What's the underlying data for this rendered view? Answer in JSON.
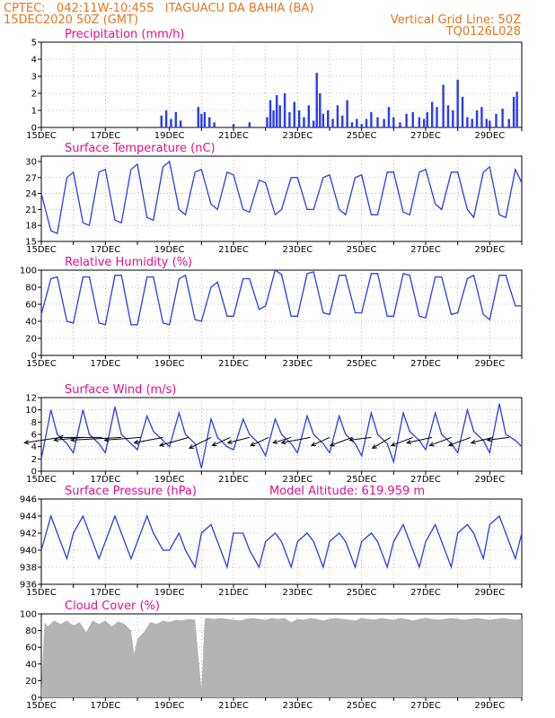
{
  "header": {
    "left_line1": "CPTEC:   042:11W-10:45S   ITAGUACU DA BAHIA (BA)",
    "left_line2": "15DEC2020 50Z (GMT)",
    "right_line1": "Vertical Grid Line: 50Z",
    "right_line2": "TQ0126L028"
  },
  "x_axis": {
    "tick_labels": [
      "15DEC",
      "17DEC",
      "19DEC",
      "21DEC",
      "23DEC",
      "25DEC",
      "27DEC",
      "29DEC"
    ],
    "start_day": 15,
    "end_day": 30
  },
  "colors": {
    "line": "#2a3cf0",
    "bar": "#2a3cf0",
    "cloud": "#b4b4b4",
    "header": "#e8741c",
    "title": "#e0108c"
  },
  "chart_data": [
    {
      "id": "precipitation",
      "type": "bar",
      "title": "Precipitation (mm/h)",
      "ylim": [
        0,
        5
      ],
      "yticks": [
        0,
        1,
        2,
        3,
        4,
        5
      ],
      "x": [
        18.75,
        18.9,
        19.05,
        19.2,
        19.35,
        19.9,
        20.0,
        20.1,
        20.25,
        20.4,
        21.0,
        21.5,
        22.05,
        22.15,
        22.25,
        22.35,
        22.45,
        22.6,
        22.75,
        22.9,
        23.05,
        23.2,
        23.35,
        23.5,
        23.6,
        23.7,
        23.8,
        23.95,
        24.1,
        24.25,
        24.4,
        24.55,
        24.7,
        24.85,
        25.0,
        25.15,
        25.3,
        25.5,
        25.7,
        25.85,
        26.0,
        26.2,
        26.4,
        26.6,
        26.8,
        26.95,
        27.05,
        27.2,
        27.35,
        27.55,
        27.7,
        27.85,
        28.0,
        28.15,
        28.3,
        28.45,
        28.6,
        28.75,
        28.9,
        29.0,
        29.2,
        29.4,
        29.6,
        29.75,
        29.85
      ],
      "values": [
        0.7,
        1.0,
        0.5,
        0.9,
        0.4,
        1.2,
        0.8,
        0.9,
        0.6,
        0.3,
        0.2,
        0.3,
        0.6,
        1.6,
        1.0,
        1.9,
        1.3,
        2.0,
        0.9,
        1.5,
        1.0,
        0.6,
        1.3,
        0.4,
        3.2,
        2.0,
        0.8,
        1.0,
        0.5,
        1.3,
        0.7,
        1.6,
        0.3,
        0.5,
        0.2,
        0.5,
        0.9,
        0.6,
        0.5,
        1.2,
        0.6,
        0.3,
        0.8,
        0.9,
        0.6,
        0.5,
        0.9,
        1.5,
        1.2,
        2.5,
        1.3,
        1.0,
        2.8,
        1.8,
        0.6,
        0.5,
        1.0,
        1.2,
        0.5,
        0.4,
        0.8,
        1.1,
        0.5,
        1.8,
        2.1
      ]
    },
    {
      "id": "surface-temperature",
      "type": "line",
      "title": "Surface Temperature (nC)",
      "ylim": [
        15,
        31
      ],
      "yticks": [
        15,
        18,
        21,
        24,
        27,
        30
      ],
      "x": [
        15.0,
        15.3,
        15.5,
        15.8,
        16.0,
        16.3,
        16.5,
        16.8,
        17.0,
        17.3,
        17.5,
        17.8,
        18.0,
        18.3,
        18.5,
        18.8,
        19.0,
        19.3,
        19.5,
        19.8,
        20.0,
        20.3,
        20.5,
        20.8,
        21.0,
        21.3,
        21.5,
        21.8,
        22.0,
        22.3,
        22.5,
        22.8,
        23.0,
        23.3,
        23.5,
        23.8,
        24.0,
        24.3,
        24.5,
        24.8,
        25.0,
        25.3,
        25.5,
        25.8,
        26.0,
        26.3,
        26.5,
        26.8,
        27.0,
        27.3,
        27.5,
        27.8,
        28.0,
        28.3,
        28.5,
        28.8,
        29.0,
        29.3,
        29.5,
        29.8,
        30.0
      ],
      "values": [
        24.0,
        17.0,
        16.5,
        27.0,
        28.0,
        18.5,
        18.0,
        28.0,
        28.5,
        19.0,
        18.5,
        28.5,
        29.5,
        19.5,
        19.0,
        29.0,
        30.0,
        21.0,
        20.0,
        28.0,
        28.5,
        22.0,
        21.0,
        28.0,
        27.5,
        21.0,
        20.5,
        26.5,
        26.0,
        20.0,
        21.0,
        27.0,
        27.0,
        21.0,
        21.0,
        27.0,
        27.5,
        21.0,
        20.0,
        27.0,
        27.5,
        20.0,
        20.0,
        28.0,
        28.0,
        20.5,
        20.0,
        28.0,
        28.5,
        22.0,
        21.0,
        28.0,
        28.0,
        21.0,
        19.5,
        28.0,
        29.0,
        20.0,
        19.5,
        28.5,
        26.0
      ]
    },
    {
      "id": "relative-humidity",
      "type": "line",
      "title": "Relative Humidity (%)",
      "ylim": [
        0,
        100
      ],
      "yticks": [
        0,
        20,
        40,
        60,
        80,
        100
      ],
      "x": [
        15.0,
        15.3,
        15.5,
        15.8,
        16.0,
        16.3,
        16.5,
        16.8,
        17.0,
        17.3,
        17.5,
        17.8,
        18.0,
        18.3,
        18.5,
        18.8,
        19.0,
        19.3,
        19.5,
        19.8,
        20.0,
        20.3,
        20.5,
        20.8,
        21.0,
        21.3,
        21.5,
        21.8,
        22.0,
        22.3,
        22.5,
        22.8,
        23.0,
        23.3,
        23.5,
        23.8,
        24.0,
        24.3,
        24.5,
        24.8,
        25.0,
        25.3,
        25.5,
        25.8,
        26.0,
        26.3,
        26.5,
        26.8,
        27.0,
        27.3,
        27.5,
        27.8,
        28.0,
        28.3,
        28.5,
        28.8,
        29.0,
        29.3,
        29.5,
        29.8,
        30.0
      ],
      "values": [
        48.0,
        90.0,
        92.0,
        40.0,
        38.0,
        92.0,
        92.0,
        38.0,
        36.0,
        94.0,
        94.0,
        36.0,
        36.0,
        92.0,
        92.0,
        38.0,
        36.0,
        90.0,
        94.0,
        42.0,
        40.0,
        80.0,
        86.0,
        46.0,
        46.0,
        90.0,
        90.0,
        54.0,
        58.0,
        100.0,
        95.0,
        46.0,
        46.0,
        96.0,
        98.0,
        50.0,
        48.0,
        94.0,
        94.0,
        50.0,
        50.0,
        96.0,
        96.0,
        46.0,
        46.0,
        96.0,
        94.0,
        46.0,
        44.0,
        92.0,
        92.0,
        48.0,
        50.0,
        90.0,
        94.0,
        48.0,
        42.0,
        94.0,
        94.0,
        58.0,
        58.0
      ]
    },
    {
      "id": "surface-wind",
      "type": "line",
      "title": "Surface Wind (m/s)",
      "ylim": [
        0,
        12
      ],
      "yticks": [
        0,
        2,
        4,
        6,
        8,
        10,
        12
      ],
      "x": [
        15.0,
        15.3,
        15.5,
        15.8,
        16.0,
        16.3,
        16.5,
        16.8,
        17.0,
        17.3,
        17.5,
        17.8,
        18.0,
        18.3,
        18.5,
        18.8,
        19.0,
        19.3,
        19.5,
        19.8,
        20.0,
        20.3,
        20.5,
        20.8,
        21.0,
        21.3,
        21.5,
        21.8,
        22.0,
        22.3,
        22.5,
        22.8,
        23.0,
        23.3,
        23.5,
        23.8,
        24.0,
        24.3,
        24.5,
        24.8,
        25.0,
        25.3,
        25.5,
        25.8,
        26.0,
        26.3,
        26.5,
        26.8,
        27.0,
        27.3,
        27.5,
        27.8,
        28.0,
        28.3,
        28.5,
        28.8,
        29.0,
        29.3,
        29.5,
        29.8,
        30.0
      ],
      "values": [
        2.0,
        10.0,
        6.0,
        4.5,
        3.0,
        10.0,
        6.0,
        4.5,
        3.0,
        10.5,
        6.0,
        4.5,
        3.5,
        9.0,
        6.5,
        5.0,
        4.0,
        9.5,
        6.0,
        4.5,
        0.5,
        8.5,
        5.5,
        4.0,
        3.5,
        8.5,
        6.0,
        4.5,
        2.5,
        8.5,
        6.0,
        4.5,
        3.0,
        9.0,
        6.0,
        4.5,
        3.0,
        9.0,
        6.0,
        4.5,
        2.5,
        9.5,
        6.0,
        4.5,
        1.5,
        9.5,
        6.5,
        5.0,
        3.5,
        9.5,
        6.0,
        4.5,
        3.0,
        10.0,
        6.5,
        5.0,
        3.0,
        11.0,
        6.0,
        5.0,
        4.0
      ],
      "vectors_x": [
        15.6,
        16.3,
        16.9,
        17.5,
        18.1,
        18.8,
        19.6,
        20.3,
        20.9,
        21.5,
        22.1,
        22.8,
        23.4,
        24.0,
        24.7,
        25.3,
        25.9,
        26.6,
        27.2,
        27.8,
        28.4,
        29.1,
        29.6
      ],
      "vectors_u": [
        -5.0,
        -4.0,
        -6.0,
        -7.0,
        -5.0,
        -4.0,
        -4.0,
        -3.0,
        -2.5,
        -3.0,
        -2.5,
        -2.5,
        -4.0,
        -2.5,
        -3.0,
        -3.0,
        -2.5,
        -3.0,
        -3.5,
        -3.0,
        -3.0,
        -3.0,
        -3.0
      ],
      "vectors_v": [
        1.0,
        0.5,
        0.0,
        0.5,
        0.5,
        1.0,
        1.5,
        2.0,
        1.5,
        1.0,
        1.5,
        1.0,
        1.0,
        1.5,
        1.5,
        0.5,
        2.0,
        1.5,
        1.0,
        1.5,
        1.5,
        1.0,
        0.5
      ]
    },
    {
      "id": "surface-pressure",
      "type": "line",
      "title": "Surface Pressure (hPa)",
      "annotation": "Model Altitude: 619.959  m",
      "ylim": [
        936,
        946
      ],
      "yticks": [
        936,
        938,
        940,
        942,
        944,
        946
      ],
      "x": [
        15.0,
        15.3,
        15.5,
        15.8,
        16.0,
        16.3,
        16.5,
        16.8,
        17.0,
        17.3,
        17.5,
        17.8,
        18.0,
        18.3,
        18.5,
        18.8,
        19.0,
        19.3,
        19.5,
        19.8,
        20.0,
        20.3,
        20.5,
        20.8,
        21.0,
        21.3,
        21.5,
        21.8,
        22.0,
        22.3,
        22.5,
        22.8,
        23.0,
        23.3,
        23.5,
        23.8,
        24.0,
        24.3,
        24.5,
        24.8,
        25.0,
        25.3,
        25.5,
        25.8,
        26.0,
        26.3,
        26.5,
        26.8,
        27.0,
        27.3,
        27.5,
        27.8,
        28.0,
        28.3,
        28.5,
        28.8,
        29.0,
        29.3,
        29.5,
        29.8,
        30.0
      ],
      "values": [
        940.0,
        944.0,
        942.0,
        939.0,
        942.0,
        944.0,
        942.0,
        939.0,
        941.0,
        944.0,
        942.0,
        939.0,
        941.0,
        944.0,
        942.0,
        940.0,
        940.0,
        942.0,
        940.0,
        938.0,
        942.0,
        943.0,
        941.0,
        938.0,
        942.0,
        942.0,
        940.0,
        938.0,
        941.0,
        942.0,
        941.0,
        938.0,
        941.0,
        942.0,
        941.0,
        938.0,
        941.0,
        942.0,
        941.0,
        938.0,
        941.0,
        942.0,
        941.0,
        938.0,
        941.0,
        943.0,
        941.0,
        938.0,
        941.0,
        943.0,
        941.0,
        938.0,
        942.0,
        943.0,
        942.0,
        939.0,
        943.0,
        944.0,
        942.0,
        939.0,
        942.0
      ]
    },
    {
      "id": "cloud-cover",
      "type": "area",
      "title": "Cloud Cover (%)",
      "ylim": [
        0,
        100
      ],
      "yticks": [
        0,
        20,
        40,
        60,
        80,
        100
      ],
      "x": [
        15.0,
        15.1,
        15.2,
        15.4,
        15.6,
        15.8,
        16.0,
        16.2,
        16.4,
        16.6,
        16.8,
        17.0,
        17.2,
        17.4,
        17.6,
        17.8,
        17.9,
        18.0,
        18.2,
        18.4,
        18.6,
        18.8,
        19.0,
        19.2,
        19.4,
        19.6,
        19.8,
        20.0,
        20.1,
        20.2,
        20.4,
        20.6,
        20.8,
        21.0,
        21.2,
        21.4,
        21.6,
        21.8,
        22.0,
        22.2,
        22.4,
        22.6,
        22.8,
        23.0,
        23.2,
        23.4,
        23.6,
        23.8,
        24.0,
        24.2,
        24.4,
        24.6,
        24.8,
        25.0,
        25.2,
        25.4,
        25.6,
        25.8,
        26.0,
        26.2,
        26.4,
        26.6,
        26.8,
        27.0,
        27.2,
        27.4,
        27.6,
        27.8,
        28.0,
        28.2,
        28.4,
        28.6,
        28.8,
        29.0,
        29.2,
        29.4,
        29.6,
        29.8,
        30.0
      ],
      "values": [
        10.0,
        90.0,
        85.0,
        92.0,
        88.0,
        92.0,
        86.0,
        90.0,
        78.0,
        92.0,
        88.0,
        92.0,
        85.0,
        91.0,
        88.0,
        80.0,
        52.0,
        70.0,
        78.0,
        90.0,
        88.0,
        92.0,
        90.0,
        93.0,
        92.0,
        94.0,
        93.0,
        10.0,
        94.0,
        95.0,
        94.0,
        95.0,
        94.0,
        93.0,
        92.0,
        94.0,
        95.0,
        94.0,
        93.0,
        95.0,
        94.0,
        95.0,
        90.0,
        94.0,
        93.0,
        95.0,
        94.0,
        92.0,
        94.0,
        95.0,
        94.0,
        93.0,
        92.0,
        95.0,
        94.0,
        93.0,
        95.0,
        94.0,
        93.0,
        95.0,
        94.0,
        92.0,
        94.0,
        95.0,
        94.0,
        93.0,
        94.0,
        95.0,
        94.0,
        93.0,
        94.0,
        95.0,
        94.0,
        93.0,
        94.0,
        95.0,
        94.0,
        93.0,
        94.0
      ]
    }
  ]
}
